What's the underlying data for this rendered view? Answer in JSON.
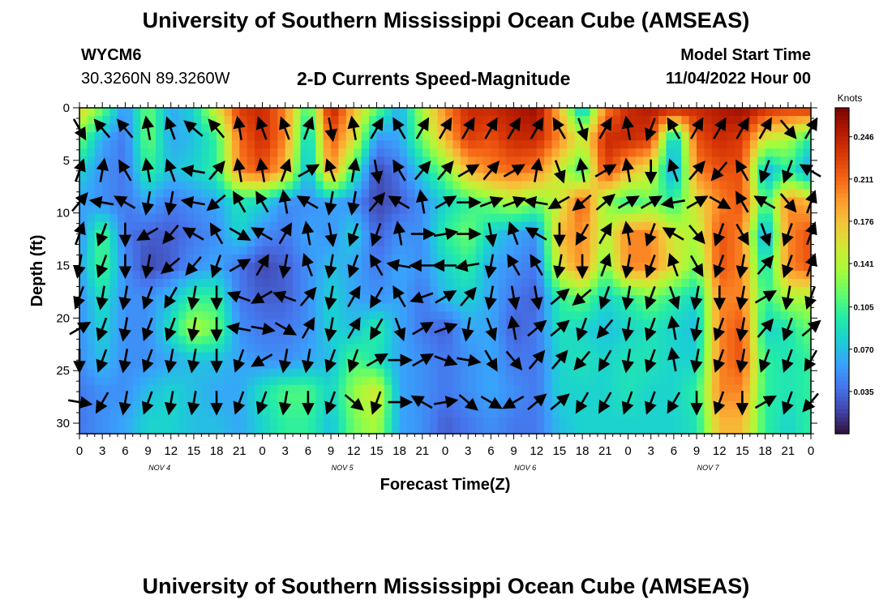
{
  "header": {
    "title": "University of Southern Mississippi Ocean Cube (AMSEAS)",
    "station_id": "WYCM6",
    "station_coords": "30.3260N  89.3260W",
    "subtitle": "2-D Currents Speed-Magnitude",
    "model_start_label": "Model Start Time",
    "model_start_value": "11/04/2022 Hour 00"
  },
  "footer": {
    "title": "University of Southern Mississippi Ocean Cube (AMSEAS)"
  },
  "chart_data": {
    "type": "heatmap",
    "title": "2-D Currents Speed-Magnitude",
    "xlabel": "Forecast Time(Z)",
    "ylabel": "Depth (ft)",
    "x_tick_labels": [
      "0",
      "3",
      "6",
      "9",
      "12",
      "15",
      "18",
      "21",
      "0",
      "3",
      "6",
      "9",
      "12",
      "15",
      "18",
      "21",
      "0",
      "3",
      "6",
      "9",
      "12",
      "15",
      "18",
      "21",
      "0",
      "3",
      "6",
      "9",
      "12",
      "15",
      "18",
      "21",
      "0"
    ],
    "x_ticks_hours": [
      0,
      3,
      6,
      9,
      12,
      15,
      18,
      21,
      24,
      27,
      30,
      33,
      36,
      39,
      42,
      45,
      48,
      51,
      54,
      57,
      60,
      63,
      66,
      69,
      72,
      75,
      78,
      81,
      84,
      87,
      90,
      93,
      96
    ],
    "xlim_hours": [
      0,
      96
    ],
    "day_labels": [
      {
        "text": "NOV 4",
        "hour": 10.5
      },
      {
        "text": "NOV 5",
        "hour": 34.5
      },
      {
        "text": "NOV 6",
        "hour": 58.5
      },
      {
        "text": "NOV 7",
        "hour": 82.5
      }
    ],
    "y_ticks": [
      0,
      5,
      10,
      15,
      20,
      25,
      30
    ],
    "ylim": [
      0,
      31
    ],
    "y_inverted": true,
    "colorbar": {
      "label": "Knots",
      "ticks": [
        "0.246",
        "0.211",
        "0.176",
        "0.141",
        "0.105",
        "0.070",
        "0.035"
      ],
      "tick_values": [
        0.246,
        0.211,
        0.176,
        0.141,
        0.105,
        0.07,
        0.035
      ],
      "range": [
        0,
        0.27
      ],
      "colors": [
        "#30123b",
        "#4145ab",
        "#4675ed",
        "#39a2fc",
        "#1bcfd4",
        "#24eca6",
        "#61fc6c",
        "#a4fc3b",
        "#d1e834",
        "#f3c63a",
        "#fe9b2d",
        "#f36315",
        "#d93806",
        "#b11901",
        "#7a0402"
      ]
    },
    "speed_grid": {
      "depths_ft": [
        0,
        3,
        6,
        9,
        12,
        15,
        18,
        21,
        24,
        27,
        30
      ],
      "hours": [
        0,
        3,
        6,
        9,
        12,
        15,
        18,
        21,
        24,
        27,
        30,
        33,
        36,
        39,
        42,
        45,
        48,
        51,
        54,
        57,
        60,
        63,
        66,
        69,
        72,
        75,
        78,
        81,
        84,
        87,
        90,
        93,
        96
      ],
      "values": [
        [
          0.17,
          0.12,
          0.05,
          0.12,
          0.06,
          0.08,
          0.16,
          0.23,
          0.24,
          0.2,
          0.1,
          0.25,
          0.18,
          0.12,
          0.06,
          0.14,
          0.2,
          0.24,
          0.24,
          0.25,
          0.26,
          0.18,
          0.06,
          0.2,
          0.24,
          0.25,
          0.25,
          0.24,
          0.25,
          0.26,
          0.24,
          0.23,
          0.24
        ],
        [
          0.12,
          0.06,
          0.04,
          0.12,
          0.06,
          0.07,
          0.1,
          0.21,
          0.24,
          0.2,
          0.07,
          0.22,
          0.16,
          0.05,
          0.06,
          0.12,
          0.18,
          0.23,
          0.22,
          0.24,
          0.24,
          0.2,
          0.15,
          0.24,
          0.24,
          0.23,
          0.06,
          0.22,
          0.24,
          0.23,
          0.15,
          0.14,
          0.09
        ],
        [
          0.08,
          0.05,
          0.04,
          0.1,
          0.07,
          0.08,
          0.1,
          0.2,
          0.22,
          0.18,
          0.06,
          0.2,
          0.1,
          0.02,
          0.04,
          0.08,
          0.12,
          0.18,
          0.2,
          0.21,
          0.2,
          0.15,
          0.1,
          0.23,
          0.18,
          0.15,
          0.05,
          0.2,
          0.22,
          0.22,
          0.06,
          0.1,
          0.05
        ],
        [
          0.06,
          0.05,
          0.04,
          0.06,
          0.04,
          0.05,
          0.06,
          0.09,
          0.08,
          0.05,
          0.05,
          0.06,
          0.05,
          0.02,
          0.03,
          0.05,
          0.08,
          0.1,
          0.12,
          0.14,
          0.12,
          0.15,
          0.22,
          0.13,
          0.1,
          0.12,
          0.1,
          0.16,
          0.2,
          0.22,
          0.1,
          0.2,
          0.18
        ],
        [
          0.05,
          0.11,
          0.04,
          0.03,
          0.03,
          0.04,
          0.05,
          0.08,
          0.05,
          0.04,
          0.06,
          0.05,
          0.08,
          0.03,
          0.05,
          0.05,
          0.1,
          0.12,
          0.08,
          0.06,
          0.05,
          0.18,
          0.2,
          0.14,
          0.2,
          0.2,
          0.15,
          0.14,
          0.22,
          0.2,
          0.05,
          0.2,
          0.22
        ],
        [
          0.06,
          0.11,
          0.05,
          0.02,
          0.03,
          0.05,
          0.06,
          0.04,
          0.02,
          0.03,
          0.05,
          0.07,
          0.06,
          0.04,
          0.06,
          0.05,
          0.08,
          0.1,
          0.06,
          0.05,
          0.04,
          0.16,
          0.2,
          0.12,
          0.2,
          0.2,
          0.16,
          0.12,
          0.22,
          0.2,
          0.08,
          0.2,
          0.22
        ],
        [
          0.05,
          0.09,
          0.05,
          0.05,
          0.07,
          0.1,
          0.1,
          0.04,
          0.03,
          0.03,
          0.05,
          0.08,
          0.06,
          0.05,
          0.06,
          0.04,
          0.07,
          0.08,
          0.06,
          0.04,
          0.03,
          0.1,
          0.12,
          0.08,
          0.1,
          0.12,
          0.1,
          0.08,
          0.2,
          0.2,
          0.1,
          0.14,
          0.14
        ],
        [
          0.05,
          0.08,
          0.05,
          0.05,
          0.09,
          0.14,
          0.12,
          0.05,
          0.04,
          0.04,
          0.05,
          0.08,
          0.07,
          0.1,
          0.06,
          0.04,
          0.03,
          0.06,
          0.06,
          0.03,
          0.04,
          0.09,
          0.08,
          0.07,
          0.08,
          0.09,
          0.08,
          0.07,
          0.2,
          0.22,
          0.08,
          0.09,
          0.12
        ],
        [
          0.05,
          0.07,
          0.05,
          0.05,
          0.06,
          0.07,
          0.07,
          0.06,
          0.05,
          0.05,
          0.06,
          0.07,
          0.11,
          0.09,
          0.06,
          0.05,
          0.04,
          0.05,
          0.06,
          0.04,
          0.04,
          0.08,
          0.09,
          0.08,
          0.09,
          0.09,
          0.08,
          0.08,
          0.2,
          0.22,
          0.1,
          0.09,
          0.1
        ],
        [
          0.04,
          0.05,
          0.05,
          0.07,
          0.08,
          0.07,
          0.06,
          0.06,
          0.09,
          0.11,
          0.11,
          0.08,
          0.13,
          0.16,
          0.06,
          0.05,
          0.04,
          0.05,
          0.06,
          0.05,
          0.04,
          0.08,
          0.08,
          0.08,
          0.09,
          0.08,
          0.08,
          0.1,
          0.2,
          0.2,
          0.1,
          0.09,
          0.1
        ],
        [
          0.04,
          0.05,
          0.06,
          0.08,
          0.08,
          0.07,
          0.07,
          0.06,
          0.08,
          0.1,
          0.1,
          0.07,
          0.12,
          0.14,
          0.06,
          0.05,
          0.03,
          0.04,
          0.05,
          0.04,
          0.04,
          0.07,
          0.08,
          0.08,
          0.08,
          0.08,
          0.08,
          0.09,
          0.18,
          0.18,
          0.1,
          0.08,
          0.1
        ]
      ]
    },
    "vectors": {
      "depths_ft": [
        2,
        6,
        9,
        12,
        15,
        18,
        21,
        24,
        28
      ],
      "hours": [
        0,
        3,
        6,
        9,
        12,
        15,
        18,
        21,
        24,
        27,
        30,
        33,
        36,
        39,
        42,
        45,
        48,
        51,
        54,
        57,
        60,
        63,
        66,
        69,
        72,
        75,
        78,
        81,
        84,
        87,
        90,
        93,
        96
      ],
      "direction_deg": [
        [
          150,
          320,
          320,
          350,
          340,
          310,
          320,
          350,
          340,
          340,
          20,
          170,
          350,
          30,
          330,
          30,
          30,
          30,
          30,
          30,
          30,
          330,
          160,
          30,
          350,
          200,
          330,
          30,
          30,
          30,
          30,
          140,
          30
        ],
        [
          20,
          10,
          330,
          350,
          340,
          280,
          40,
          350,
          350,
          20,
          60,
          340,
          10,
          170,
          330,
          40,
          40,
          60,
          40,
          60,
          10,
          160,
          350,
          60,
          350,
          180,
          340,
          40,
          220,
          330,
          200,
          200,
          300
        ],
        [
          40,
          280,
          300,
          190,
          190,
          280,
          230,
          330,
          330,
          350,
          300,
          190,
          190,
          40,
          300,
          350,
          60,
          90,
          70,
          70,
          280,
          240,
          230,
          50,
          60,
          60,
          260,
          60,
          120,
          330,
          300,
          140,
          20
        ],
        [
          20,
          200,
          180,
          240,
          220,
          300,
          330,
          120,
          300,
          30,
          350,
          170,
          200,
          200,
          350,
          90,
          80,
          90,
          170,
          340,
          300,
          180,
          210,
          30,
          350,
          200,
          300,
          140,
          200,
          150,
          160,
          200,
          20
        ],
        [
          190,
          200,
          180,
          190,
          230,
          220,
          200,
          60,
          30,
          190,
          340,
          190,
          200,
          330,
          280,
          270,
          270,
          260,
          190,
          330,
          330,
          190,
          180,
          20,
          190,
          200,
          340,
          150,
          200,
          190,
          40,
          200,
          20
        ],
        [
          200,
          190,
          190,
          200,
          210,
          190,
          180,
          290,
          240,
          290,
          40,
          190,
          30,
          210,
          330,
          250,
          60,
          40,
          190,
          170,
          170,
          50,
          230,
          200,
          190,
          200,
          160,
          190,
          180,
          190,
          60,
          190,
          200
        ],
        [
          60,
          200,
          190,
          200,
          200,
          190,
          180,
          280,
          100,
          120,
          30,
          190,
          30,
          210,
          160,
          60,
          70,
          190,
          160,
          350,
          50,
          50,
          200,
          220,
          190,
          200,
          350,
          190,
          200,
          190,
          40,
          200,
          50
        ],
        [
          180,
          200,
          190,
          200,
          190,
          190,
          180,
          200,
          240,
          190,
          190,
          200,
          200,
          60,
          90,
          60,
          110,
          100,
          150,
          140,
          40,
          40,
          220,
          210,
          190,
          200,
          350,
          190,
          200,
          190,
          200,
          200,
          210
        ],
        [
          100,
          210,
          190,
          200,
          190,
          190,
          180,
          200,
          200,
          190,
          180,
          200,
          130,
          200,
          90,
          300,
          80,
          130,
          120,
          240,
          50,
          50,
          210,
          210,
          200,
          200,
          210,
          180,
          200,
          180,
          60,
          200,
          220
        ]
      ]
    }
  }
}
